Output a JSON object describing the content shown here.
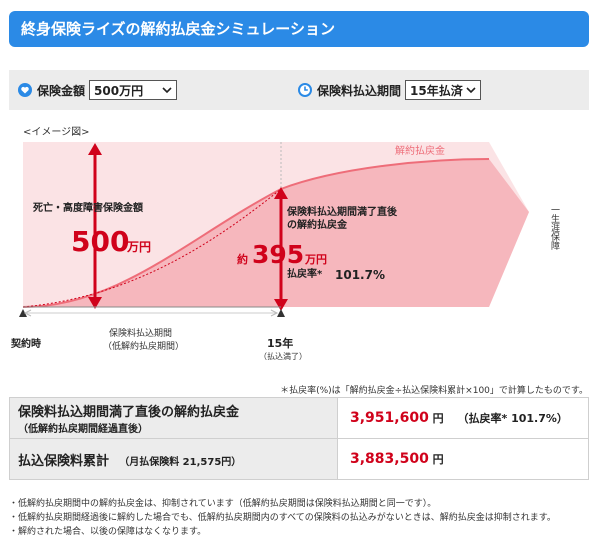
{
  "header": {
    "title": "終身保険ライズの解約払戻金シミュレーション"
  },
  "controls": {
    "amount_label": "保険金額",
    "amount_value": "500万円",
    "period_label": "保険料払込期間",
    "period_value": "15年払済"
  },
  "chart": {
    "image_label": "<イメージ図>",
    "death_label": "死亡・高度障害保険金額",
    "death_amount": "500",
    "death_unit": "万円",
    "refund_curve_label": "解約払戻金",
    "after_period_line1": "保険料払込期間満了直後",
    "after_period_line2": "の解約払戻金",
    "approx": "約",
    "refund_amount": "395",
    "refund_unit": "万円",
    "refund_rate_label": "払戻率*",
    "refund_rate_value": "101.7%",
    "lifetime_label": "一生涯保障",
    "payment_period_line1": "保険料払込期間",
    "payment_period_line2": "（低解約払戻期間）",
    "contract_label": "契約時",
    "year_label": "15年",
    "paid_up_label": "（払込満了）"
  },
  "note": "＊払戻率(%)は「解約払戻金÷払込保険料累計×100」で計算したものです。",
  "summary": {
    "row1_label": "保険料払込期間満了直後の解約払戻金",
    "row1_sub": "（低解約払戻期間経過直後）",
    "row1_value": "3,951,600",
    "row1_unit": "円",
    "row1_ratio": "（払戻率* 101.7%）",
    "row2_label": "払込保険料累計",
    "row2_sub": "（月払保険料 21,575円）",
    "row2_value": "3,883,500",
    "row2_unit": "円"
  },
  "footnotes": [
    "・低解約払戻期間中の解約払戻金は、抑制されています（低解約払戻期間は保険料払込期間と同一です）。",
    "・低解約払戻期間経過後に解約した場合でも、低解約払戻期間内のすべての保険料の払込みがないときは、解約払戻金は抑制されます。",
    "・解約された場合、以後の保障はなくなります。"
  ],
  "colors": {
    "accent": "#2b8ae6",
    "red": "#d0021b",
    "pink_light": "#fbe3e5",
    "pink_mid": "#f6b7bd",
    "curve": "#ee6d79"
  }
}
